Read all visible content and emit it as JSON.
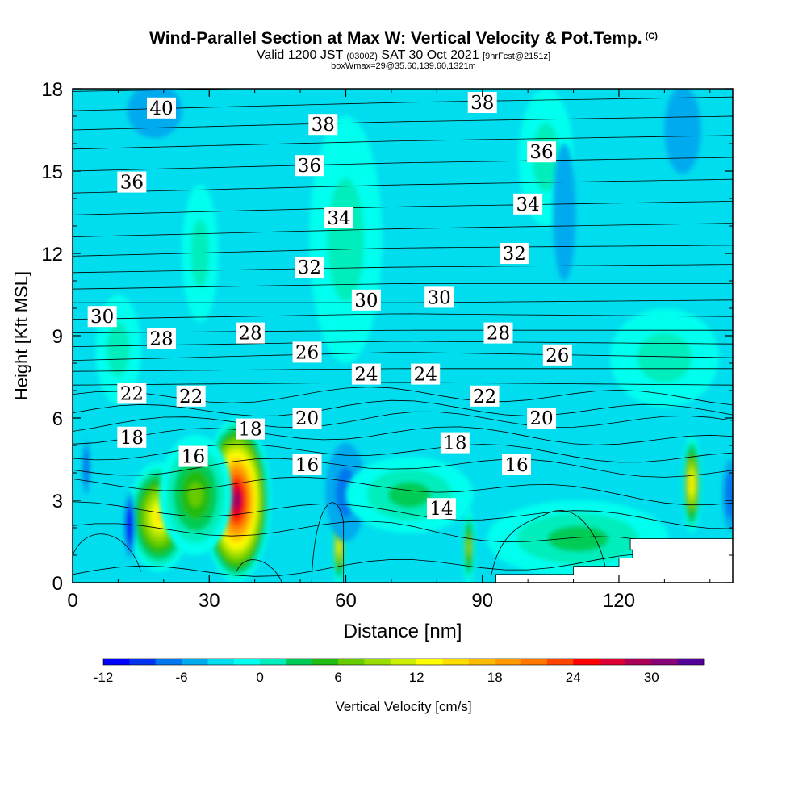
{
  "header": {
    "title": "Wind-Parallel Section at Max W: Vertical Velocity & Pot.Temp.",
    "title_mark": "(C)",
    "valid_prefix": "Valid 1200 JST",
    "valid_utc": "(0300Z)",
    "valid_date": "SAT 30 Oct 2021",
    "valid_fcst": "[9hrFcst@2151z]",
    "box_info": "boxWmax=29@35.60,139.60,1321m"
  },
  "chart_data": {
    "type": "contour",
    "xlabel": "Distance [nm]",
    "ylabel": "Height [Kft MSL]",
    "xlim": [
      0,
      145
    ],
    "ylim": [
      0,
      18
    ],
    "x_ticks": [
      0,
      30,
      60,
      90,
      120
    ],
    "y_ticks": [
      0,
      3,
      6,
      9,
      12,
      15,
      18
    ],
    "background_value": -3,
    "colorbar": {
      "label": "Vertical Velocity [cm/s]",
      "min": -12,
      "step": 2,
      "tick_labels": [
        -12,
        -6,
        0,
        6,
        12,
        18,
        24,
        30
      ],
      "colors": [
        "#0000ff",
        "#0033ee",
        "#0077ee",
        "#00aaee",
        "#00ddee",
        "#00ffee",
        "#00eebb",
        "#00cc55",
        "#22bb11",
        "#66cc00",
        "#99dd00",
        "#ccee00",
        "#ffff00",
        "#ffdd00",
        "#ffbb00",
        "#ff9900",
        "#ff7700",
        "#ff4400",
        "#ff0000",
        "#dd0033",
        "#aa0055",
        "#880077",
        "#550099"
      ]
    },
    "theta_label_units": "K",
    "theta_labels": [
      {
        "text": "40",
        "x": 19.5,
        "y": 17.3
      },
      {
        "text": "38",
        "x": 55.0,
        "y": 16.7
      },
      {
        "text": "38",
        "x": 90.0,
        "y": 17.5
      },
      {
        "text": "36",
        "x": 103.0,
        "y": 15.7
      },
      {
        "text": "36",
        "x": 13.0,
        "y": 14.6
      },
      {
        "text": "36",
        "x": 52.0,
        "y": 15.2
      },
      {
        "text": "34",
        "x": 58.5,
        "y": 13.3
      },
      {
        "text": "34",
        "x": 100.0,
        "y": 13.8
      },
      {
        "text": "32",
        "x": 52.0,
        "y": 11.5
      },
      {
        "text": "32",
        "x": 97.0,
        "y": 12.0
      },
      {
        "text": "30",
        "x": 6.5,
        "y": 9.7
      },
      {
        "text": "30",
        "x": 64.5,
        "y": 10.3
      },
      {
        "text": "30",
        "x": 80.5,
        "y": 10.4
      },
      {
        "text": "28",
        "x": 19.5,
        "y": 8.9
      },
      {
        "text": "28",
        "x": 39.0,
        "y": 9.1
      },
      {
        "text": "28",
        "x": 93.5,
        "y": 9.1
      },
      {
        "text": "26",
        "x": 51.5,
        "y": 8.4
      },
      {
        "text": "26",
        "x": 106.5,
        "y": 8.3
      },
      {
        "text": "24",
        "x": 64.5,
        "y": 7.6
      },
      {
        "text": "24",
        "x": 77.5,
        "y": 7.6
      },
      {
        "text": "22",
        "x": 13.0,
        "y": 6.9
      },
      {
        "text": "22",
        "x": 26.0,
        "y": 6.8
      },
      {
        "text": "22",
        "x": 90.5,
        "y": 6.8
      },
      {
        "text": "20",
        "x": 51.5,
        "y": 6.0
      },
      {
        "text": "20",
        "x": 103.0,
        "y": 6.0
      },
      {
        "text": "18",
        "x": 13.0,
        "y": 5.3
      },
      {
        "text": "18",
        "x": 39.0,
        "y": 5.6
      },
      {
        "text": "18",
        "x": 84.0,
        "y": 5.1
      },
      {
        "text": "16",
        "x": 26.5,
        "y": 4.6
      },
      {
        "text": "16",
        "x": 51.5,
        "y": 4.3
      },
      {
        "text": "16",
        "x": 97.5,
        "y": 4.3
      },
      {
        "text": "14",
        "x": 81.0,
        "y": 2.7
      }
    ],
    "w_features": [
      {
        "x": 36,
        "y": 3.0,
        "w": 30,
        "rx": 7.5,
        "ry": 3.0
      },
      {
        "x": 19,
        "y": 2.4,
        "w": 15,
        "rx": 7.0,
        "ry": 2.0
      },
      {
        "x": 27,
        "y": 3.2,
        "w": 7,
        "rx": 8.0,
        "ry": 2.2
      },
      {
        "x": 136,
        "y": 3.6,
        "w": 15,
        "rx": 2.2,
        "ry": 1.8
      },
      {
        "x": 58.5,
        "y": 1.3,
        "w": 12,
        "rx": 1.6,
        "ry": 1.4
      },
      {
        "x": 87,
        "y": 1.3,
        "w": 9,
        "rx": 1.5,
        "ry": 1.4
      },
      {
        "x": 12.5,
        "y": 2.1,
        "w": -13,
        "rx": 1.2,
        "ry": 1.2
      },
      {
        "x": 3.0,
        "y": 4.2,
        "w": -8,
        "rx": 0.9,
        "ry": 1.0
      },
      {
        "x": 144.5,
        "y": 3.2,
        "w": -8,
        "rx": 1.8,
        "ry": 1.3
      },
      {
        "x": 60,
        "y": 3.3,
        "w": -7,
        "rx": 4.5,
        "ry": 1.8
      },
      {
        "x": 74,
        "y": 3.2,
        "w": 2,
        "rx": 14.0,
        "ry": 1.4
      },
      {
        "x": 111,
        "y": 1.6,
        "w": 2,
        "rx": 20.0,
        "ry": 1.4
      },
      {
        "x": 130,
        "y": 8.2,
        "w": 1,
        "rx": 12.0,
        "ry": 1.8
      },
      {
        "x": 10,
        "y": 8.5,
        "w": 1,
        "rx": 5.0,
        "ry": 2.0
      },
      {
        "x": 60,
        "y": 12.5,
        "w": 0,
        "rx": 8.0,
        "ry": 4.5
      },
      {
        "x": 104,
        "y": 15.5,
        "w": 0,
        "rx": 6.0,
        "ry": 2.5
      },
      {
        "x": 28,
        "y": 12.0,
        "w": 0,
        "rx": 4.0,
        "ry": 2.5
      },
      {
        "x": 18,
        "y": 17.2,
        "w": -6,
        "rx": 6.0,
        "ry": 1.0
      },
      {
        "x": 108,
        "y": 13.5,
        "w": -6,
        "rx": 2.5,
        "ry": 2.5
      },
      {
        "x": 134,
        "y": 16.5,
        "w": -6,
        "rx": 4.0,
        "ry": 1.6
      }
    ],
    "terrain_top_kft": [
      {
        "x": 93,
        "y": 0
      },
      {
        "x": 93,
        "y": 0.3
      },
      {
        "x": 110,
        "y": 0.3
      },
      {
        "x": 110,
        "y": 0.6
      },
      {
        "x": 120,
        "y": 0.6
      },
      {
        "x": 120,
        "y": 0.9
      },
      {
        "x": 123,
        "y": 0.9
      },
      {
        "x": 123,
        "y": 1.2
      },
      {
        "x": 122.5,
        "y": 1.2
      },
      {
        "x": 122.5,
        "y": 1.6
      },
      {
        "x": 145,
        "y": 1.6
      },
      {
        "x": 145,
        "y": 0
      }
    ]
  }
}
